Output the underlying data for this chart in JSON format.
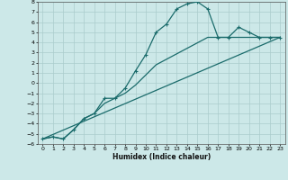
{
  "xlabel": "Humidex (Indice chaleur)",
  "xlim": [
    -0.5,
    23.5
  ],
  "ylim": [
    -6,
    8
  ],
  "xticks": [
    0,
    1,
    2,
    3,
    4,
    5,
    6,
    7,
    8,
    9,
    10,
    11,
    12,
    13,
    14,
    15,
    16,
    17,
    18,
    19,
    20,
    21,
    22,
    23
  ],
  "yticks": [
    8,
    7,
    6,
    5,
    4,
    3,
    2,
    1,
    0,
    -1,
    -2,
    -3,
    -4,
    -5,
    -6
  ],
  "bg_color": "#cce8e8",
  "grid_color": "#aacccc",
  "line_color": "#1a6b6b",
  "curve1_x": [
    0,
    1,
    2,
    3,
    4,
    5,
    6,
    7,
    8,
    9,
    10,
    11,
    12,
    13,
    14,
    15,
    16,
    17,
    18,
    19,
    20,
    21,
    22,
    23
  ],
  "curve1_y": [
    -5.5,
    -5.3,
    -5.5,
    -4.6,
    -3.5,
    -3.0,
    -1.5,
    -1.5,
    -0.5,
    1.2,
    2.8,
    5.0,
    5.8,
    7.3,
    7.8,
    8.0,
    7.3,
    4.5,
    4.5,
    5.5,
    5.0,
    4.5,
    4.5,
    4.5
  ],
  "curve2_x": [
    0,
    1,
    2,
    3,
    4,
    5,
    6,
    7,
    8,
    9,
    10,
    11,
    16,
    17,
    18,
    19,
    20,
    21,
    22,
    23
  ],
  "curve2_y": [
    -5.5,
    -5.3,
    -5.5,
    -4.6,
    -3.5,
    -3.0,
    -2.0,
    -1.5,
    -1.0,
    -0.2,
    0.8,
    1.8,
    4.5,
    4.5,
    4.5,
    4.5,
    4.5,
    4.5,
    4.5,
    4.5
  ],
  "curve3_x": [
    0,
    23
  ],
  "curve3_y": [
    -5.5,
    4.5
  ],
  "figsize": [
    3.2,
    2.0
  ],
  "dpi": 100
}
